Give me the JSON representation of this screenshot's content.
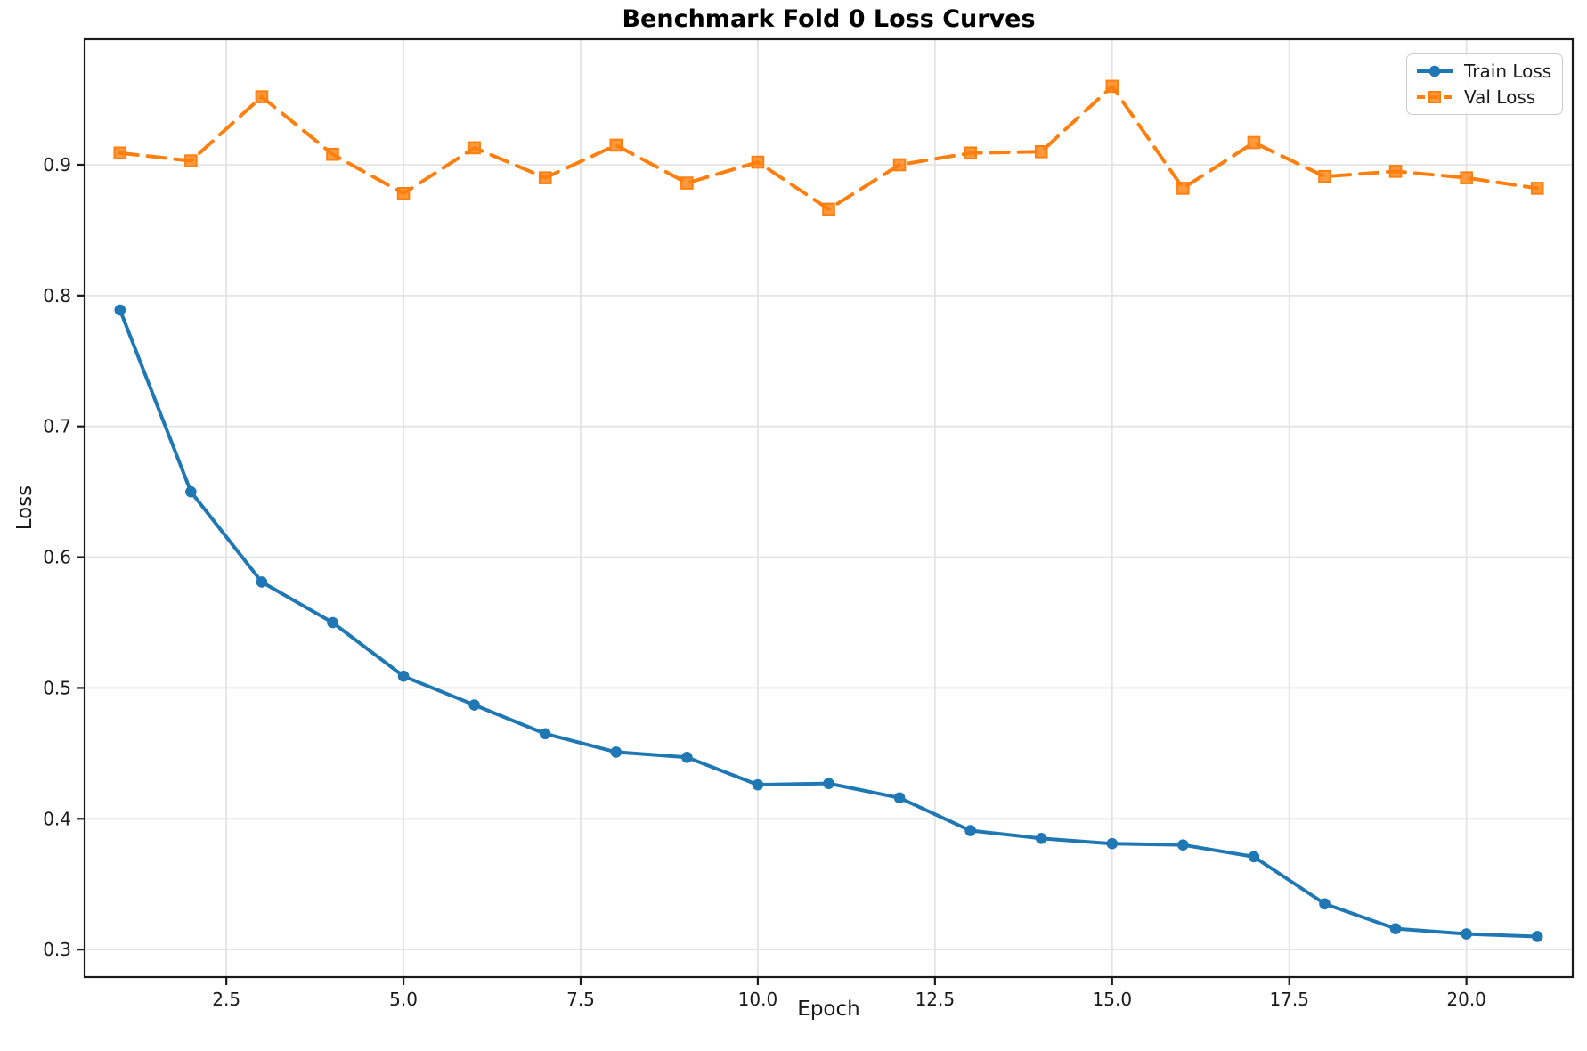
{
  "chart_data": {
    "type": "line",
    "title": "Benchmark Fold 0 Loss Curves",
    "xlabel": "Epoch",
    "ylabel": "Loss",
    "x": [
      1,
      2,
      3,
      4,
      5,
      6,
      7,
      8,
      9,
      10,
      11,
      12,
      13,
      14,
      15,
      16,
      17,
      18,
      19,
      20,
      21
    ],
    "series": [
      {
        "name": "Train Loss",
        "color": "#1f77b4",
        "marker": "circle",
        "linestyle": "solid",
        "values": [
          0.789,
          0.65,
          0.581,
          0.55,
          0.509,
          0.487,
          0.465,
          0.451,
          0.447,
          0.426,
          0.427,
          0.416,
          0.391,
          0.385,
          0.381,
          0.38,
          0.371,
          0.335,
          0.316,
          0.312,
          0.31
        ]
      },
      {
        "name": "Val Loss",
        "color": "#ff7f0e",
        "marker": "square",
        "linestyle": "dashed",
        "values": [
          0.909,
          0.903,
          0.952,
          0.908,
          0.878,
          0.913,
          0.89,
          0.915,
          0.886,
          0.902,
          0.866,
          0.9,
          0.909,
          0.91,
          0.96,
          0.882,
          0.917,
          0.891,
          0.895,
          0.89,
          0.882
        ]
      }
    ],
    "xlim": [
      0.5,
      21.5
    ],
    "ylim": [
      0.279,
      0.996
    ],
    "xticks": {
      "values": [
        2.5,
        5.0,
        7.5,
        10.0,
        12.5,
        15.0,
        17.5,
        20.0
      ],
      "labels": [
        "2.5",
        "5.0",
        "7.5",
        "10.0",
        "12.5",
        "15.0",
        "17.5",
        "20.0"
      ]
    },
    "yticks": {
      "values": [
        0.3,
        0.4,
        0.5,
        0.6,
        0.7,
        0.8,
        0.9
      ],
      "labels": [
        "0.3",
        "0.4",
        "0.5",
        "0.6",
        "0.7",
        "0.8",
        "0.9"
      ]
    },
    "grid": true,
    "legend_position": "upper right"
  },
  "style": {
    "grid_color": "#e4e4e4",
    "spine_color": "#1a1a1a",
    "background": "#ffffff"
  }
}
